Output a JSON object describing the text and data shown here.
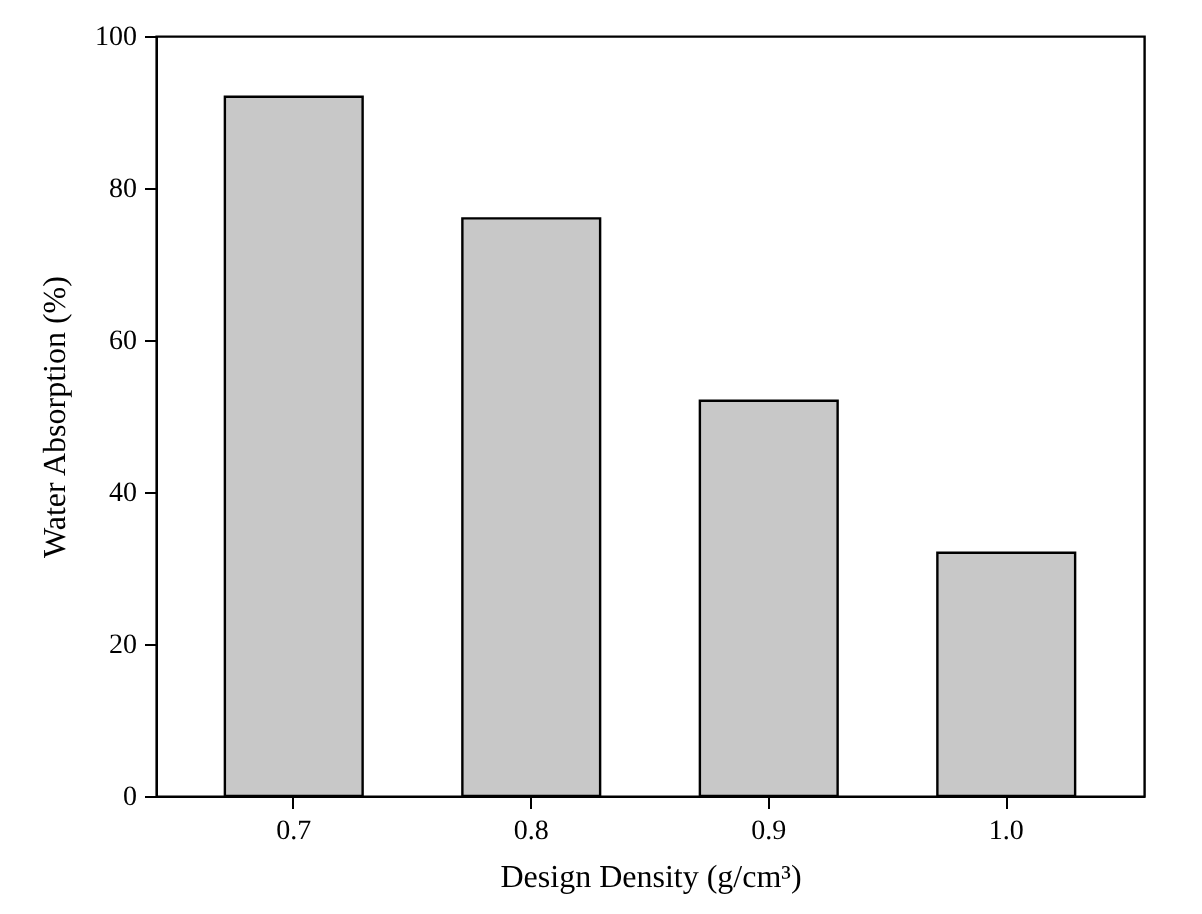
{
  "chart_data": {
    "type": "bar",
    "xlabel": "Design Density (g/cm³)",
    "ylabel": "Water Absorption (%)",
    "categories": [
      "0.7",
      "0.8",
      "0.9",
      "1.0"
    ],
    "values": [
      92,
      76,
      52,
      32
    ],
    "color": "#c8c8c8",
    "ylim": [
      0,
      100
    ],
    "yticks": [
      0,
      20,
      40,
      60,
      80,
      100
    ],
    "grid": false
  }
}
